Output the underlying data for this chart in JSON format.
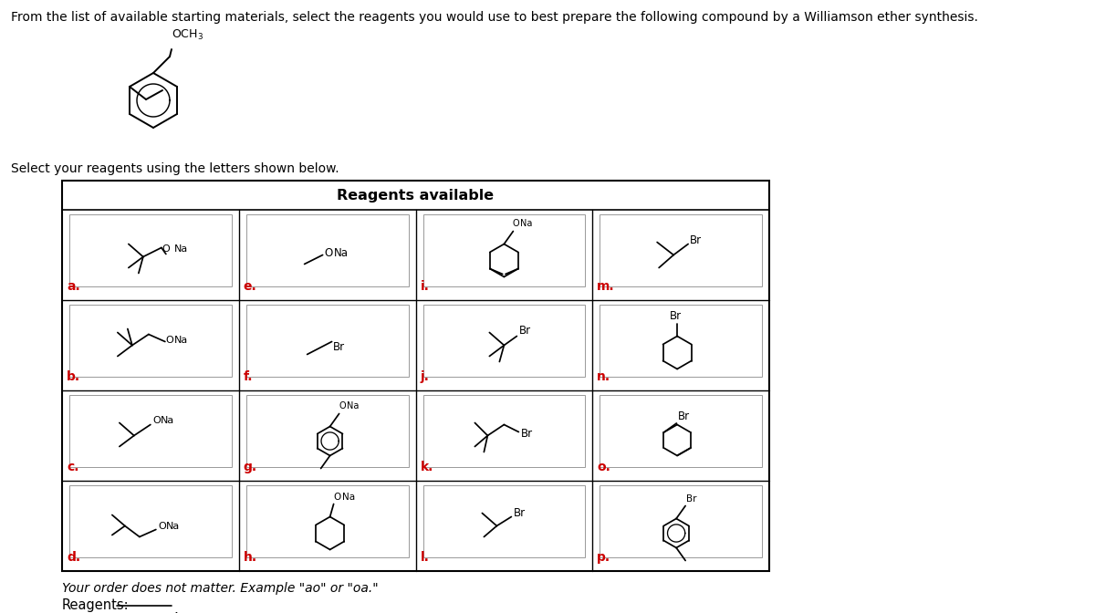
{
  "title_text": "From the list of available starting materials, select the reagents you would use to best prepare the following compound by a Williamson ether synthesis.",
  "select_text": "Select your reagents using the letters shown below.",
  "table_title": "Reagents available",
  "footer_text": "Your order does not matter. Example \"ao\" or \"oa.\"",
  "reagents_label": "Reagents:",
  "bg_color": "#ffffff",
  "label_color": "#cc0000",
  "label_fontsize": 10,
  "title_fontsize": 10,
  "select_fontsize": 10,
  "table_title_fontsize": 11,
  "cell_labels": [
    "a",
    "b",
    "c",
    "d",
    "e",
    "f",
    "g",
    "h",
    "i",
    "j",
    "k",
    "l",
    "m",
    "n",
    "o",
    "p"
  ],
  "grid_rows": 4,
  "grid_cols": 4
}
